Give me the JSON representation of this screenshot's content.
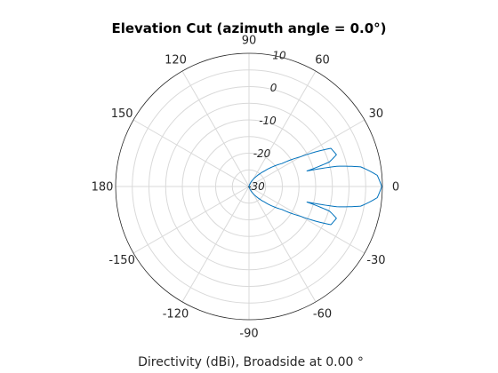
{
  "chart_data": {
    "type": "line",
    "subtype": "polar",
    "title": "Elevation Cut (azimuth angle = 0.0°)",
    "xlabel": "Directivity (dBi), Broadside at 0.00 °",
    "theta_direction": "counterclockwise",
    "theta_zero_location": "right",
    "theta_ticks": [
      0,
      30,
      60,
      90,
      120,
      150,
      180,
      -150,
      -120,
      -90,
      -60,
      -30
    ],
    "rlim": [
      -30,
      10
    ],
    "r_ticks": [
      -30,
      -20,
      -10,
      0,
      10
    ],
    "rings_r": [
      -30,
      -25,
      -20,
      -15,
      -10,
      -5,
      0,
      5,
      10
    ],
    "grid": true,
    "colors": {
      "line": "#0072BD",
      "grid": "#d9d9d9",
      "axis": "#262626"
    },
    "series": [
      {
        "theta_deg": [
          -90,
          -80,
          -70,
          -60,
          -55,
          -50,
          -45,
          -40,
          -35,
          -30,
          -25,
          -20,
          -17,
          -15,
          -13,
          -10,
          -5,
          0,
          5,
          10,
          13,
          15,
          17,
          20,
          25,
          30,
          35,
          40,
          45,
          50,
          55,
          60,
          70,
          80,
          90
        ],
        "r_db": [
          -30,
          -30,
          -29.2,
          -27.6,
          -26.5,
          -25.1,
          -23.4,
          -20.8,
          -18.0,
          -12.1,
          -2.9,
          -2.1,
          -4.8,
          -12.0,
          -3.0,
          4.0,
          8.6,
          9.8,
          8.6,
          4.0,
          -3.0,
          -12.0,
          -4.8,
          -2.1,
          -2.9,
          -12.1,
          -18.0,
          -20.8,
          -23.4,
          -25.1,
          -26.5,
          -27.6,
          -29.2,
          -30,
          -30
        ]
      }
    ]
  }
}
